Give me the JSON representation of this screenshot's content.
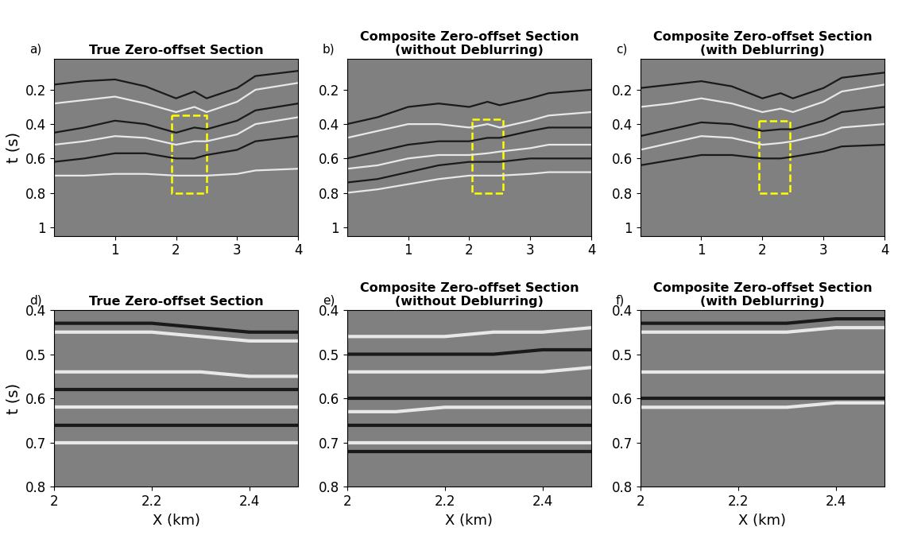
{
  "chart_data": [
    {
      "type": "image",
      "panel": "a)",
      "title": "True Zero-offset Section",
      "background": "#808080",
      "ylabel": "t (s)",
      "xlim": [
        0,
        4
      ],
      "ylim": [
        1.05,
        0.02
      ],
      "xticks": [
        1,
        2,
        3,
        4
      ],
      "yticks": [
        0.2,
        0.4,
        0.6,
        0.8,
        1
      ],
      "x": [
        0,
        0.5,
        1,
        1.5,
        2,
        2.3,
        2.5,
        3,
        3.3,
        4
      ],
      "series": [
        {
          "color": "#1a1a1a",
          "values": [
            0.17,
            0.15,
            0.14,
            0.18,
            0.25,
            0.21,
            0.25,
            0.19,
            0.12,
            0.09
          ]
        },
        {
          "color": "#e8e8e8",
          "values": [
            0.28,
            0.26,
            0.24,
            0.28,
            0.33,
            0.3,
            0.33,
            0.27,
            0.2,
            0.16
          ]
        },
        {
          "color": "#1a1a1a",
          "values": [
            0.45,
            0.42,
            0.38,
            0.4,
            0.45,
            0.42,
            0.43,
            0.38,
            0.32,
            0.28
          ]
        },
        {
          "color": "#e8e8e8",
          "values": [
            0.52,
            0.5,
            0.47,
            0.48,
            0.52,
            0.5,
            0.5,
            0.46,
            0.4,
            0.36
          ]
        },
        {
          "color": "#1a1a1a",
          "values": [
            0.62,
            0.6,
            0.57,
            0.57,
            0.6,
            0.6,
            0.58,
            0.55,
            0.5,
            0.47
          ]
        },
        {
          "color": "#e8e8e8",
          "values": [
            0.7,
            0.7,
            0.69,
            0.69,
            0.7,
            0.7,
            0.7,
            0.69,
            0.67,
            0.66
          ]
        }
      ],
      "box": {
        "x": [
          1.93,
          2.5
        ],
        "t": [
          0.35,
          0.8
        ],
        "color": "#ffff00"
      }
    },
    {
      "type": "image",
      "panel": "b)",
      "title": "Composite Zero-offset Section\n(without Deblurring)",
      "background": "#808080",
      "xlim": [
        0,
        4
      ],
      "ylim": [
        1.05,
        0.02
      ],
      "xticks": [
        1,
        2,
        3,
        4
      ],
      "yticks": [
        0.2,
        0.4,
        0.6,
        0.8,
        1
      ],
      "x": [
        0,
        0.5,
        1,
        1.5,
        2,
        2.3,
        2.5,
        3,
        3.3,
        4
      ],
      "series": [
        {
          "color": "#1a1a1a",
          "values": [
            0.4,
            0.36,
            0.3,
            0.28,
            0.3,
            0.27,
            0.29,
            0.25,
            0.22,
            0.2
          ]
        },
        {
          "color": "#e8e8e8",
          "values": [
            0.48,
            0.44,
            0.4,
            0.4,
            0.42,
            0.4,
            0.42,
            0.38,
            0.35,
            0.33
          ]
        },
        {
          "color": "#1a1a1a",
          "values": [
            0.6,
            0.56,
            0.52,
            0.5,
            0.5,
            0.48,
            0.48,
            0.44,
            0.42,
            0.42
          ]
        },
        {
          "color": "#e8e8e8",
          "values": [
            0.66,
            0.64,
            0.6,
            0.58,
            0.58,
            0.57,
            0.56,
            0.54,
            0.52,
            0.52
          ]
        },
        {
          "color": "#1a1a1a",
          "values": [
            0.74,
            0.72,
            0.68,
            0.64,
            0.62,
            0.62,
            0.62,
            0.6,
            0.6,
            0.6
          ]
        },
        {
          "color": "#e8e8e8",
          "values": [
            0.8,
            0.78,
            0.75,
            0.72,
            0.7,
            0.7,
            0.7,
            0.69,
            0.68,
            0.68
          ]
        }
      ],
      "box": {
        "x": [
          2.05,
          2.55
        ],
        "t": [
          0.37,
          0.8
        ],
        "color": "#ffff00"
      }
    },
    {
      "type": "image",
      "panel": "c)",
      "title": "Composite Zero-offset Section\n(with Deblurring)",
      "background": "#808080",
      "xlim": [
        0,
        4
      ],
      "ylim": [
        1.05,
        0.02
      ],
      "xticks": [
        1,
        2,
        3,
        4
      ],
      "yticks": [
        0.2,
        0.4,
        0.6,
        0.8,
        1
      ],
      "x": [
        0,
        0.5,
        1,
        1.5,
        2,
        2.3,
        2.5,
        3,
        3.3,
        4
      ],
      "series": [
        {
          "color": "#1a1a1a",
          "values": [
            0.19,
            0.17,
            0.15,
            0.18,
            0.25,
            0.22,
            0.25,
            0.19,
            0.13,
            0.1
          ]
        },
        {
          "color": "#e8e8e8",
          "values": [
            0.3,
            0.28,
            0.25,
            0.28,
            0.33,
            0.31,
            0.33,
            0.27,
            0.21,
            0.17
          ]
        },
        {
          "color": "#1a1a1a",
          "values": [
            0.47,
            0.43,
            0.39,
            0.4,
            0.44,
            0.43,
            0.43,
            0.38,
            0.33,
            0.3
          ]
        },
        {
          "color": "#e8e8e8",
          "values": [
            0.55,
            0.51,
            0.47,
            0.48,
            0.52,
            0.51,
            0.5,
            0.46,
            0.42,
            0.4
          ]
        },
        {
          "color": "#1a1a1a",
          "values": [
            0.64,
            0.61,
            0.58,
            0.58,
            0.6,
            0.6,
            0.59,
            0.56,
            0.53,
            0.52
          ]
        }
      ],
      "box": {
        "x": [
          1.95,
          2.45
        ],
        "t": [
          0.38,
          0.8
        ],
        "color": "#ffff00"
      }
    },
    {
      "type": "image",
      "panel": "d)",
      "title": "True Zero-offset Section",
      "background": "#808080",
      "xlabel": "X (km)",
      "ylabel": "t (s)",
      "xlim": [
        2,
        2.5
      ],
      "ylim": [
        0.8,
        0.4
      ],
      "xticks": [
        2,
        2.2,
        2.4
      ],
      "yticks": [
        0.4,
        0.5,
        0.6,
        0.7,
        0.8
      ],
      "x": [
        2,
        2.1,
        2.2,
        2.3,
        2.4,
        2.5
      ],
      "series": [
        {
          "color": "#1a1a1a",
          "values": [
            0.43,
            0.43,
            0.43,
            0.44,
            0.45,
            0.45
          ]
        },
        {
          "color": "#e8e8e8",
          "values": [
            0.45,
            0.45,
            0.45,
            0.46,
            0.47,
            0.47
          ]
        },
        {
          "color": "#e8e8e8",
          "values": [
            0.54,
            0.54,
            0.54,
            0.54,
            0.55,
            0.55
          ]
        },
        {
          "color": "#1a1a1a",
          "values": [
            0.58,
            0.58,
            0.58,
            0.58,
            0.58,
            0.58
          ]
        },
        {
          "color": "#e8e8e8",
          "values": [
            0.62,
            0.62,
            0.62,
            0.62,
            0.62,
            0.62
          ]
        },
        {
          "color": "#1a1a1a",
          "values": [
            0.66,
            0.66,
            0.66,
            0.66,
            0.66,
            0.66
          ]
        },
        {
          "color": "#e8e8e8",
          "values": [
            0.7,
            0.7,
            0.7,
            0.7,
            0.7,
            0.7
          ]
        }
      ]
    },
    {
      "type": "image",
      "panel": "e)",
      "title": "Composite Zero-offset Section\n(without Deblurring)",
      "background": "#808080",
      "xlabel": "X (km)",
      "xlim": [
        2,
        2.5
      ],
      "ylim": [
        0.8,
        0.4
      ],
      "xticks": [
        2,
        2.2,
        2.4
      ],
      "yticks": [
        0.4,
        0.5,
        0.6,
        0.7,
        0.8
      ],
      "x": [
        2,
        2.1,
        2.2,
        2.3,
        2.4,
        2.5
      ],
      "series": [
        {
          "color": "#e8e8e8",
          "values": [
            0.46,
            0.46,
            0.46,
            0.45,
            0.45,
            0.44
          ]
        },
        {
          "color": "#1a1a1a",
          "values": [
            0.5,
            0.5,
            0.5,
            0.5,
            0.49,
            0.49
          ]
        },
        {
          "color": "#e8e8e8",
          "values": [
            0.54,
            0.54,
            0.54,
            0.54,
            0.54,
            0.53
          ]
        },
        {
          "color": "#1a1a1a",
          "values": [
            0.6,
            0.6,
            0.6,
            0.6,
            0.6,
            0.6
          ]
        },
        {
          "color": "#e8e8e8",
          "values": [
            0.63,
            0.63,
            0.62,
            0.62,
            0.62,
            0.62
          ]
        },
        {
          "color": "#1a1a1a",
          "values": [
            0.66,
            0.66,
            0.66,
            0.66,
            0.66,
            0.66
          ]
        },
        {
          "color": "#e8e8e8",
          "values": [
            0.7,
            0.7,
            0.7,
            0.7,
            0.7,
            0.7
          ]
        },
        {
          "color": "#1a1a1a",
          "values": [
            0.72,
            0.72,
            0.72,
            0.72,
            0.72,
            0.72
          ]
        }
      ]
    },
    {
      "type": "image",
      "panel": "f)",
      "title": "Composite Zero-offset Section\n(with Deblurring)",
      "background": "#808080",
      "xlabel": "X (km)",
      "xlim": [
        2,
        2.5
      ],
      "ylim": [
        0.8,
        0.4
      ],
      "xticks": [
        2,
        2.2,
        2.4
      ],
      "yticks": [
        0.4,
        0.5,
        0.6,
        0.7,
        0.8
      ],
      "x": [
        2,
        2.1,
        2.2,
        2.3,
        2.4,
        2.5
      ],
      "series": [
        {
          "color": "#1a1a1a",
          "values": [
            0.43,
            0.43,
            0.43,
            0.43,
            0.42,
            0.42
          ]
        },
        {
          "color": "#e8e8e8",
          "values": [
            0.45,
            0.45,
            0.45,
            0.45,
            0.44,
            0.44
          ]
        },
        {
          "color": "#e8e8e8",
          "values": [
            0.54,
            0.54,
            0.54,
            0.54,
            0.54,
            0.54
          ]
        },
        {
          "color": "#1a1a1a",
          "values": [
            0.6,
            0.6,
            0.6,
            0.6,
            0.6,
            0.6
          ]
        },
        {
          "color": "#e8e8e8",
          "values": [
            0.62,
            0.62,
            0.62,
            0.62,
            0.61,
            0.61
          ]
        }
      ]
    }
  ]
}
